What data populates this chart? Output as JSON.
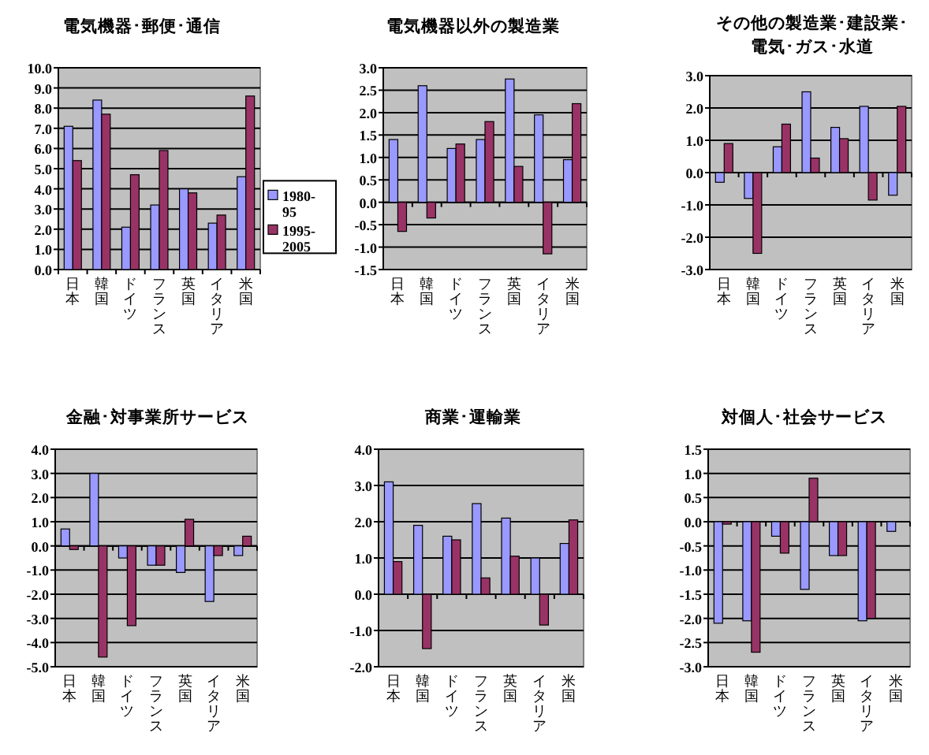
{
  "chart_data": [
    {
      "type": "bar",
      "title": "電気機器･郵便･通信",
      "categories": [
        "日本",
        "韓国",
        "ドイツ",
        "フランス",
        "英国",
        "イタリア",
        "米国"
      ],
      "series": [
        {
          "name": "1980-95",
          "color": "#9999ff",
          "values": [
            7.1,
            8.4,
            2.1,
            3.2,
            4.0,
            2.3,
            4.6
          ]
        },
        {
          "name": "1995-2005",
          "color": "#993366",
          "values": [
            5.4,
            7.7,
            4.7,
            5.9,
            3.8,
            2.7,
            8.6
          ]
        }
      ],
      "ylim": [
        0,
        10
      ],
      "yticks": [
        {
          "value": 0,
          "label": "0.0"
        },
        {
          "value": 1,
          "label": "1.0"
        },
        {
          "value": 2,
          "label": "2.0"
        },
        {
          "value": 3,
          "label": "3.0"
        },
        {
          "value": 4,
          "label": "4.0"
        },
        {
          "value": 5,
          "label": "5.0"
        },
        {
          "value": 6,
          "label": "6.0"
        },
        {
          "value": 7,
          "label": "7.0"
        },
        {
          "value": 8,
          "label": "8.0"
        },
        {
          "value": 9,
          "label": "9.0"
        },
        {
          "value": 10,
          "label": "10.0"
        }
      ],
      "grid": "y",
      "legend": "right"
    },
    {
      "type": "bar",
      "title": "電気機器以外の製造業",
      "categories": [
        "日本",
        "韓国",
        "ドイツ",
        "フランス",
        "英国",
        "イタリア",
        "米国"
      ],
      "series": [
        {
          "color": "#9999ff",
          "values": [
            1.4,
            2.6,
            1.2,
            1.4,
            2.75,
            1.95,
            0.95
          ]
        },
        {
          "color": "#993366",
          "values": [
            -0.65,
            -0.35,
            1.3,
            1.8,
            0.8,
            -1.15,
            2.2
          ]
        }
      ],
      "ylim": [
        -1.5,
        3
      ],
      "yticks": [
        {
          "value": -1.5,
          "label": "-1.5"
        },
        {
          "value": -1,
          "label": "-1.0"
        },
        {
          "value": -0.5,
          "label": "-0.5"
        },
        {
          "value": 0,
          "label": "0.0"
        },
        {
          "value": 0.5,
          "label": "0.5"
        },
        {
          "value": 1,
          "label": "1.0"
        },
        {
          "value": 1.5,
          "label": "1.5"
        },
        {
          "value": 2,
          "label": "2.0"
        },
        {
          "value": 2.5,
          "label": "2.5"
        },
        {
          "value": 3,
          "label": "3.0"
        }
      ],
      "grid": "y"
    },
    {
      "type": "bar",
      "title": "その他の製造業･建設業･電気･ガス･水道",
      "categories": [
        "日本",
        "韓国",
        "ドイツ",
        "フランス",
        "英国",
        "イタリア",
        "米国"
      ],
      "series": [
        {
          "color": "#9999ff",
          "values": [
            -0.3,
            -0.8,
            0.8,
            2.5,
            1.4,
            2.05,
            -0.7
          ]
        },
        {
          "color": "#993366",
          "values": [
            0.9,
            -2.5,
            1.5,
            0.45,
            1.05,
            -0.85,
            2.05
          ]
        }
      ],
      "ylim": [
        -3,
        3
      ],
      "yticks": [
        {
          "value": -3,
          "label": "-3.0"
        },
        {
          "value": -2,
          "label": "-2.0"
        },
        {
          "value": -1,
          "label": "-1.0"
        },
        {
          "value": 0,
          "label": "0.0"
        },
        {
          "value": 1,
          "label": "1.0"
        },
        {
          "value": 2,
          "label": "2.0"
        },
        {
          "value": 3,
          "label": "3.0"
        }
      ],
      "grid": "y"
    },
    {
      "type": "bar",
      "title": "金融･対事業所サービス",
      "categories": [
        "日本",
        "韓国",
        "ドイツ",
        "フランス",
        "英国",
        "イタリア",
        "米国"
      ],
      "series": [
        {
          "color": "#9999ff",
          "values": [
            0.7,
            3.0,
            -0.5,
            -0.8,
            -1.1,
            -2.3,
            -0.4
          ]
        },
        {
          "color": "#993366",
          "values": [
            -0.15,
            -4.6,
            -3.3,
            -0.8,
            1.1,
            -0.4,
            0.4
          ]
        }
      ],
      "ylim": [
        -5,
        4
      ],
      "yticks": [
        {
          "value": -5,
          "label": "-5.0"
        },
        {
          "value": -4,
          "label": "-4.0"
        },
        {
          "value": -3,
          "label": "-3.0"
        },
        {
          "value": -2,
          "label": "-2.0"
        },
        {
          "value": -1,
          "label": "-1.0"
        },
        {
          "value": 0,
          "label": "0.0"
        },
        {
          "value": 1,
          "label": "1.0"
        },
        {
          "value": 2,
          "label": "2.0"
        },
        {
          "value": 3,
          "label": "3.0"
        },
        {
          "value": 4,
          "label": "4.0"
        }
      ],
      "grid": "y"
    },
    {
      "type": "bar",
      "title": "商業･運輸業",
      "categories": [
        "日本",
        "韓国",
        "ドイツ",
        "フランス",
        "英国",
        "イタリア",
        "米国"
      ],
      "series": [
        {
          "color": "#9999ff",
          "values": [
            3.1,
            1.9,
            1.6,
            2.5,
            2.1,
            1.0,
            1.4
          ]
        },
        {
          "color": "#993366",
          "values": [
            0.9,
            -1.5,
            1.5,
            0.45,
            1.05,
            -0.85,
            2.05
          ]
        }
      ],
      "ylim": [
        -2,
        4
      ],
      "yticks": [
        {
          "value": -2,
          "label": "-2.0"
        },
        {
          "value": -1,
          "label": "-1.0"
        },
        {
          "value": 0,
          "label": "0.0"
        },
        {
          "value": 1,
          "label": "1.0"
        },
        {
          "value": 2,
          "label": "2.0"
        },
        {
          "value": 3,
          "label": "3.0"
        },
        {
          "value": 4,
          "label": "4.0"
        }
      ],
      "grid": "y"
    },
    {
      "type": "bar",
      "title": "対個人･社会サービス",
      "categories": [
        "日本",
        "韓国",
        "ドイツ",
        "フランス",
        "英国",
        "イタリア",
        "米国"
      ],
      "series": [
        {
          "color": "#9999ff",
          "values": [
            -2.1,
            -2.05,
            -0.3,
            -1.4,
            -0.7,
            -2.05,
            -0.2
          ]
        },
        {
          "color": "#993366",
          "values": [
            -0.05,
            -2.7,
            -0.65,
            0.9,
            -0.7,
            -2.0,
            0.0
          ]
        }
      ],
      "ylim": [
        -3,
        1.5
      ],
      "yticks": [
        {
          "value": -3,
          "label": "-3.0"
        },
        {
          "value": -2.5,
          "label": "-2.5"
        },
        {
          "value": -2,
          "label": "-2.0"
        },
        {
          "value": -1.5,
          "label": "-1.5"
        },
        {
          "value": -1,
          "label": "-1.0"
        },
        {
          "value": -0.5,
          "label": "-0.5"
        },
        {
          "value": 0,
          "label": "0.0"
        },
        {
          "value": 0.5,
          "label": "0.5"
        },
        {
          "value": 1,
          "label": "1.0"
        },
        {
          "value": 1.5,
          "label": "1.5"
        }
      ],
      "grid": "y"
    }
  ]
}
